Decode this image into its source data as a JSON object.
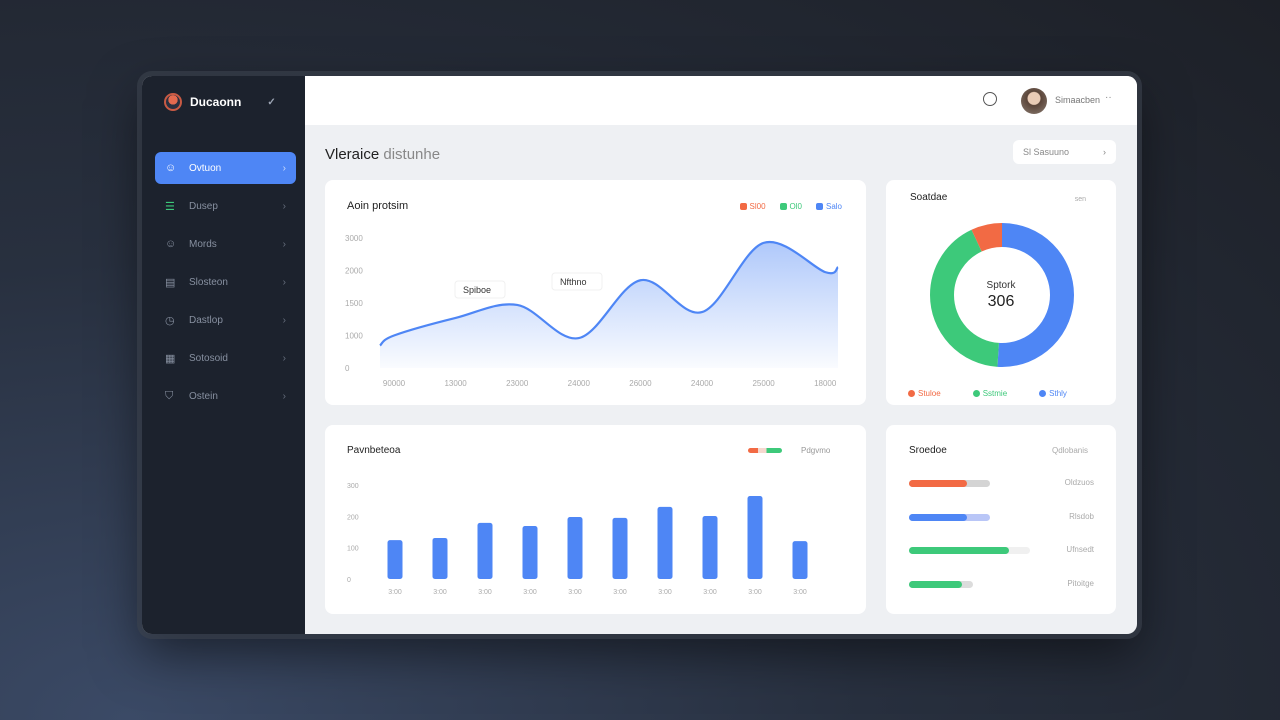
{
  "sidebar": {
    "brand": "Ducaonn",
    "items": [
      {
        "label": "Ovtuon",
        "icon": "chat-icon",
        "active": true
      },
      {
        "label": "Dusep",
        "icon": "store-icon"
      },
      {
        "label": "Mords",
        "icon": "smile-icon"
      },
      {
        "label": "Slosteon",
        "icon": "document-icon"
      },
      {
        "label": "Dastlop",
        "icon": "clock-icon"
      },
      {
        "label": "Sotosoid",
        "icon": "grid-icon"
      },
      {
        "label": "Ostein",
        "icon": "shield-icon"
      }
    ]
  },
  "header": {
    "user_name": "Simaacben",
    "more": "··"
  },
  "page": {
    "title": "Vleraice",
    "subtitle": "distunhe",
    "filter_label": "Sl Sasuuno"
  },
  "line_card": {
    "title": "Aoin protsim",
    "legend": [
      {
        "label": "Sl00",
        "color": "#f26a44"
      },
      {
        "label": "Ol0",
        "color": "#3dc97a"
      },
      {
        "label": "Salo",
        "color": "#4e86f5"
      }
    ],
    "annotations": [
      "Spiboe",
      "Nfthno"
    ]
  },
  "donut_card": {
    "title": "Soatdae",
    "badge": "sen",
    "center_label": "Sptork",
    "center_value": "306",
    "legend": [
      {
        "label": "Stuloe",
        "color": "#f26a44"
      },
      {
        "label": "Sstmie",
        "color": "#3dc97a"
      },
      {
        "label": "Sthly",
        "color": "#4e86f5"
      }
    ]
  },
  "bar_card": {
    "title": "Pavnbeteoa",
    "legend_label": "Pdgvmo",
    "legend_colors": [
      "#f26a44",
      "#3dc97a"
    ]
  },
  "progress_card": {
    "title": "Sroedoe",
    "header_right": "Qdlobanis",
    "items": [
      {
        "label": "Oldzuos",
        "value": 0.72,
        "color": "#f26a44",
        "track": "#d4d4d4"
      },
      {
        "label": "Rlsdob",
        "value": 0.72,
        "color": "#4e86f5",
        "track": "#b9c6f7"
      },
      {
        "label": "Ufnsedt",
        "value": 0.83,
        "color": "#3dc97a",
        "track": "#f0f0f0"
      },
      {
        "label": "Pitoitge",
        "value": 0.83,
        "color": "#3dc97a",
        "track": "#dcdcdc"
      }
    ]
  },
  "chart_data": [
    {
      "type": "area",
      "title": "Aoin protsim",
      "ylim": [
        0,
        4000
      ],
      "yticks": [
        "3000",
        "2000",
        "1500",
        "1000",
        "0"
      ],
      "categories": [
        "90000",
        "13000",
        "23000",
        "24000",
        "26000",
        "24000",
        "25000",
        "18000"
      ],
      "series": [
        {
          "values": [
            1000,
            1540,
            1940,
            920,
            2700,
            1720,
            3850,
            2950
          ],
          "color": "#4e86f5"
        }
      ]
    },
    {
      "type": "pie",
      "title": "Soatdae",
      "values": [
        51,
        42,
        7
      ],
      "labels": [
        "Sthly",
        "Sstmie",
        "Stuloe"
      ],
      "colors": [
        "#4e86f5",
        "#3dc97a",
        "#f26a44"
      ]
    },
    {
      "type": "bar",
      "title": "Pavnbeteoa",
      "ylim": [
        0,
        300
      ],
      "yticks": [
        "300",
        "200",
        "100",
        "0"
      ],
      "categories": [
        "3:00",
        "3:00",
        "3:00",
        "3:00",
        "3:00",
        "3:00",
        "3:00",
        "3:00",
        "3:00",
        "3:00"
      ],
      "values": [
        124,
        131,
        179,
        169,
        198,
        195,
        230,
        201,
        265,
        121
      ],
      "color": "#4e86f5"
    }
  ]
}
